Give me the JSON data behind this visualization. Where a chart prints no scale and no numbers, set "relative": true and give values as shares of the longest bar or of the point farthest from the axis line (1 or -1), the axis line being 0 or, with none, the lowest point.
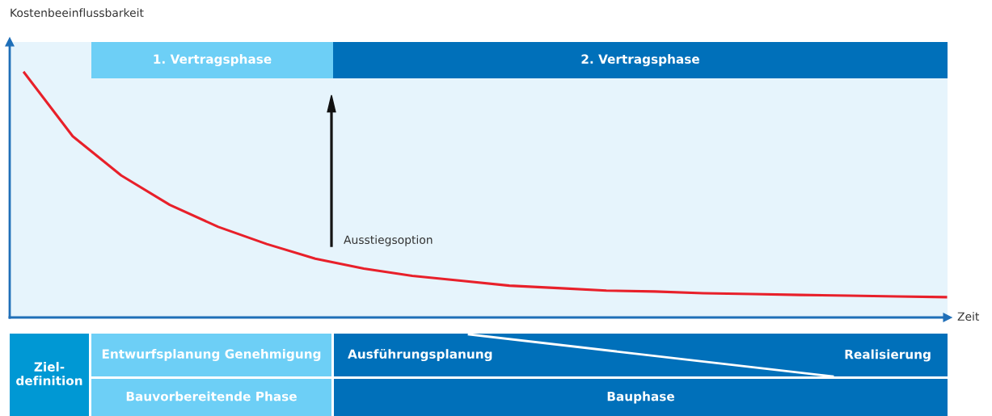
{
  "chart_data": {
    "type": "line",
    "relative": true,
    "ylabel": "Kostenbeeinflussbarkeit",
    "xlabel": "Zeit",
    "categories": [
      null,
      null,
      null,
      null,
      null,
      null,
      null,
      null,
      null,
      null,
      null,
      null,
      null,
      null,
      null,
      null,
      null,
      null,
      null,
      null
    ],
    "series": [
      {
        "color": "#e8202a",
        "values": [
          1,
          0.74,
          0.58,
          0.46,
          0.37,
          0.3,
          0.24,
          0.2,
          0.17,
          0.15,
          0.13,
          0.12,
          0.11,
          0.106,
          0.099,
          0.096,
          0.092,
          0.089,
          0.086,
          0.083
        ]
      }
    ],
    "annotations": [
      "1. Vertragsphase",
      "2. Vertragsphase",
      "Ausstiegsoption",
      "Ziel-\ndefinition",
      "Entwurfsplanung Genehmigung",
      "Ausführungsplanung",
      "Realisierung",
      "Bauvorbereitende Phase",
      "Bauphase"
    ],
    "marker": "none",
    "line_style": "solid"
  }
}
